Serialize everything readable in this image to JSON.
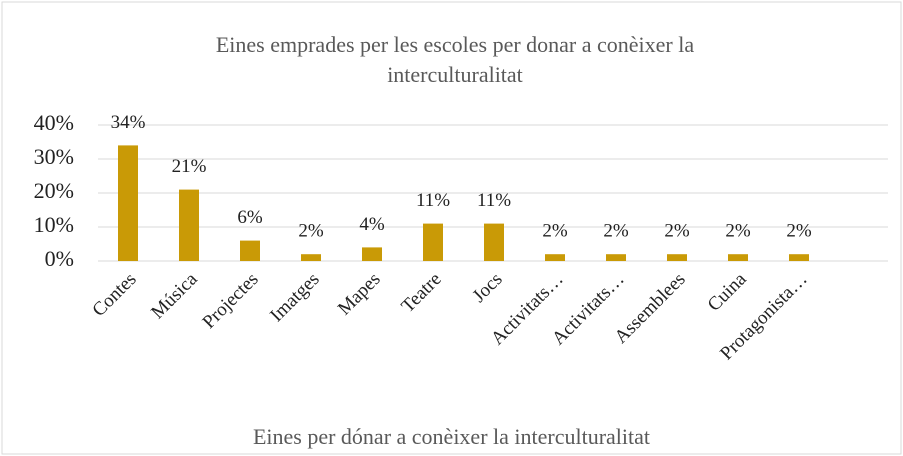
{
  "chart_data": {
    "type": "bar",
    "title": "Eines emprades per les escoles per donar a conèixer la interculturalitat",
    "x_label": "Eines per dónar a conèixer la interculturalitat",
    "categories": [
      "Contes",
      "Música",
      "Projectes",
      "Imatges",
      "Mapes",
      "Teatre",
      "Jocs",
      "Activitats…",
      "Activitats…",
      "Assemblees",
      "Cuina",
      "Protagonista…"
    ],
    "values": [
      34,
      21,
      6,
      2,
      4,
      11,
      11,
      2,
      2,
      2,
      2,
      2
    ],
    "value_labels": [
      "34%",
      "21%",
      "6%",
      "2%",
      "4%",
      "11%",
      "11%",
      "2%",
      "2%",
      "2%",
      "2%",
      "2%"
    ],
    "color": "#c99a06",
    "ylim": [
      0,
      40
    ],
    "yticks": [
      {
        "value": 0,
        "label": "0%"
      },
      {
        "value": 10,
        "label": "10%"
      },
      {
        "value": 20,
        "label": "20%"
      },
      {
        "value": 30,
        "label": "30%"
      },
      {
        "value": 40,
        "label": "40%"
      }
    ],
    "grid": true
  }
}
